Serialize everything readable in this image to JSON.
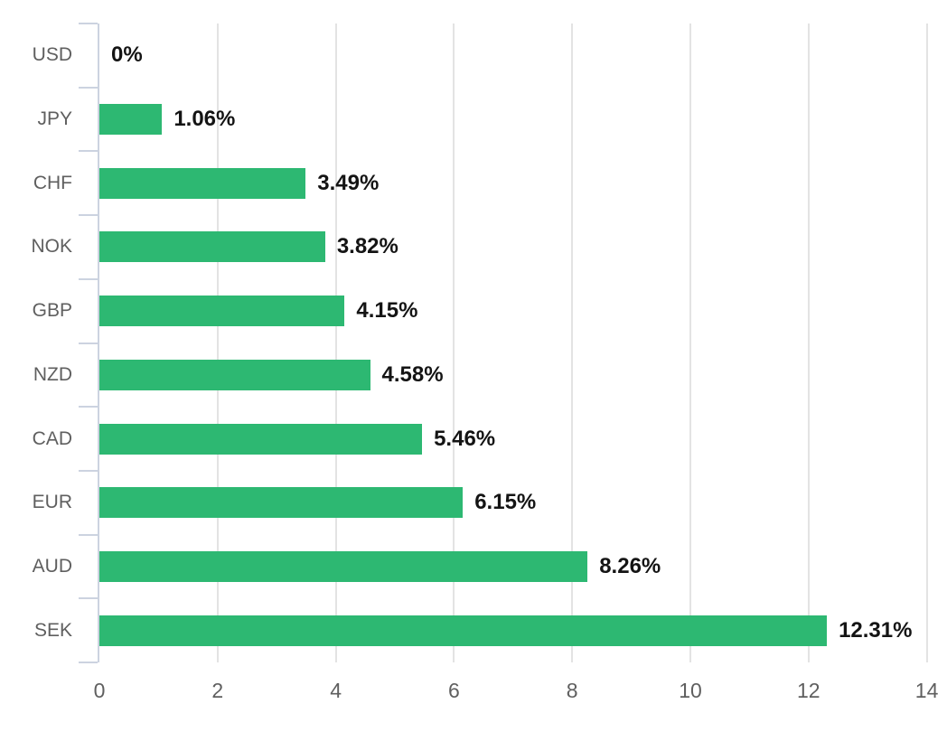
{
  "chart_data": {
    "type": "bar",
    "orientation": "horizontal",
    "title": "",
    "xlabel": "",
    "ylabel": "",
    "categories": [
      "USD",
      "JPY",
      "CHF",
      "NOK",
      "GBP",
      "NZD",
      "CAD",
      "EUR",
      "AUD",
      "SEK"
    ],
    "series": [
      {
        "name": "percent",
        "values": [
          0,
          1.06,
          3.49,
          3.82,
          4.15,
          4.58,
          5.46,
          6.15,
          8.26,
          12.31
        ]
      }
    ],
    "value_labels": [
      "0%",
      "1.06%",
      "3.49%",
      "3.82%",
      "4.15%",
      "4.58%",
      "5.46%",
      "6.15%",
      "8.26%",
      "12.31%"
    ],
    "x_axis": {
      "min": 0,
      "max": 14,
      "tick_values": [
        0,
        2,
        4,
        6,
        8,
        10,
        12,
        14
      ],
      "tick_labels": [
        "0",
        "2",
        "4",
        "6",
        "8",
        "10",
        "12",
        "14"
      ]
    },
    "grid": true,
    "legend": false,
    "colors": {
      "bar": "#2db872",
      "gridline": "#e3e3e3",
      "axis": "#ccd3e0",
      "category_label": "#5f5f5f",
      "x_tick_label": "#5f5f5f",
      "value_label": "#141414",
      "background": "#ffffff"
    }
  }
}
